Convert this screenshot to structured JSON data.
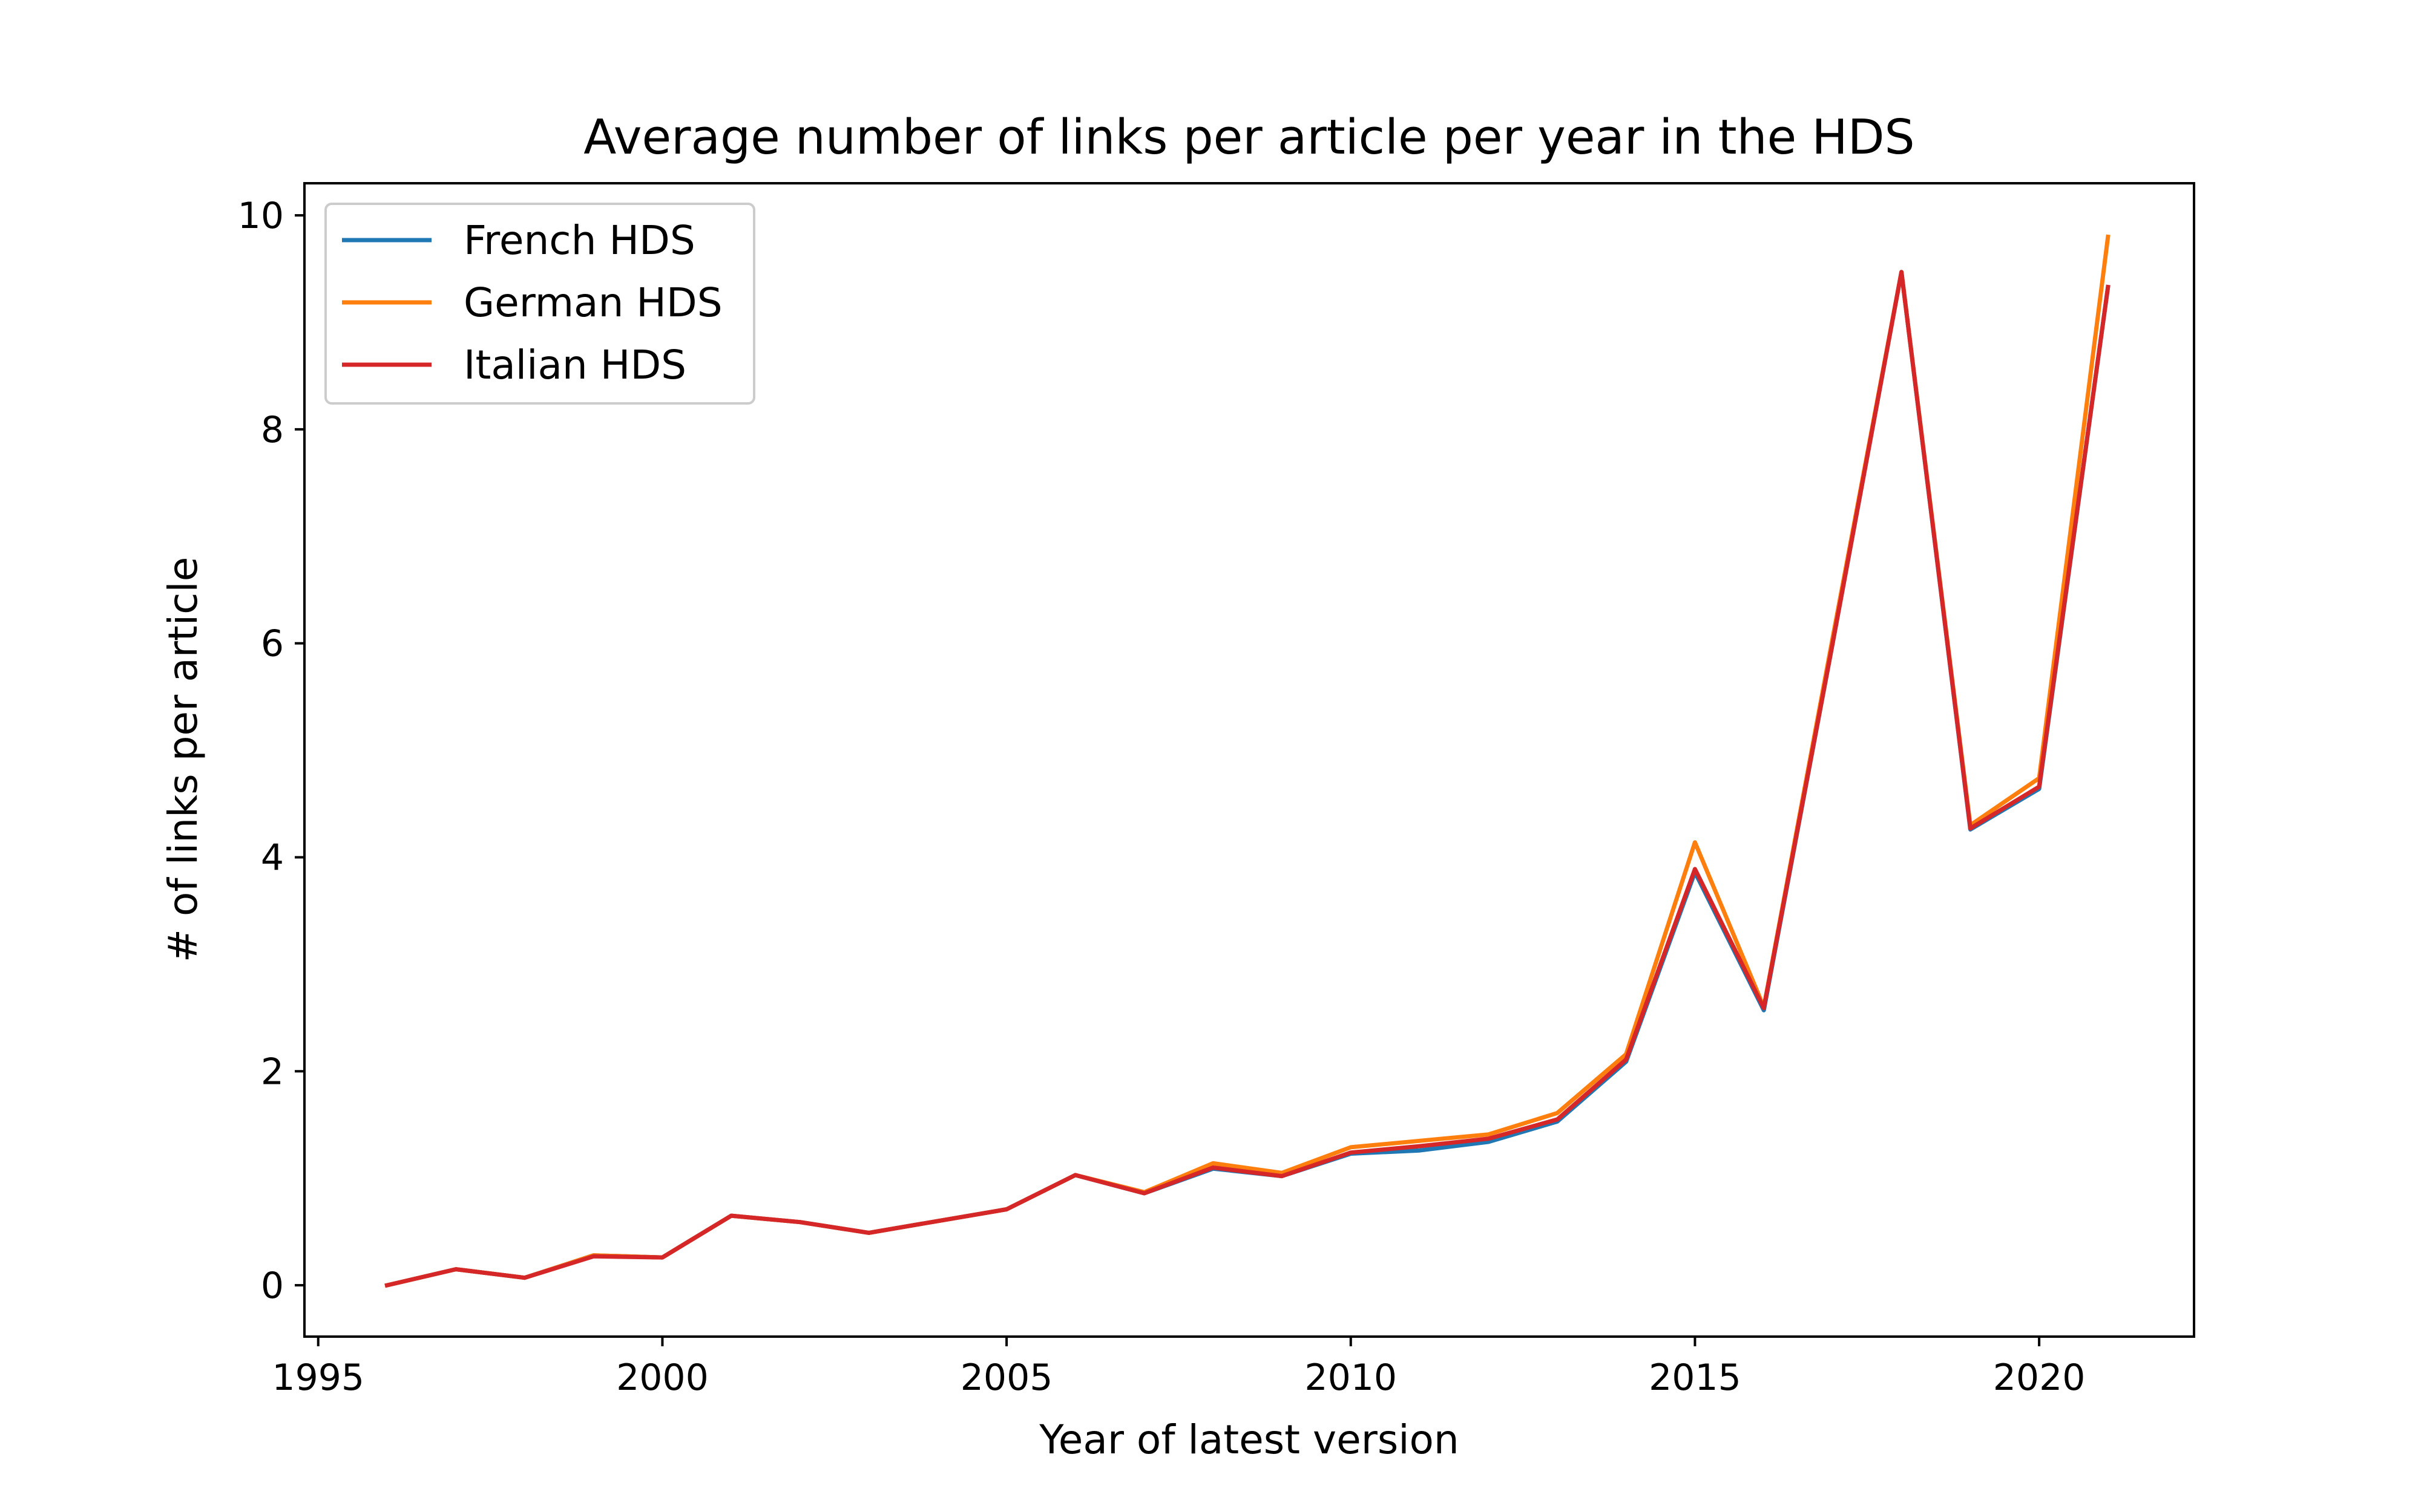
{
  "chart_data": {
    "type": "line",
    "title": "Average number of links per article per year in the HDS",
    "xlabel": "Year of latest version",
    "ylabel": "# of links per article",
    "xlim": [
      1994.8,
      2022.25
    ],
    "ylim": [
      -0.48,
      10.3
    ],
    "x_ticks": [
      1995,
      2000,
      2005,
      2010,
      2015,
      2020
    ],
    "y_ticks": [
      0,
      2,
      4,
      6,
      8,
      10
    ],
    "grid": false,
    "legend_position": "top-left",
    "x": [
      1996,
      1997,
      1998,
      1999,
      2000,
      2001,
      2002,
      2003,
      2004,
      2005,
      2006,
      2007,
      2008,
      2009,
      2010,
      2011,
      2012,
      2013,
      2014,
      2015,
      2016,
      2017,
      2018,
      2019,
      2020,
      2021
    ],
    "series": [
      {
        "name": "French HDS",
        "color": "#1f77b4",
        "values": [
          0.0,
          0.15,
          0.07,
          0.28,
          0.26,
          0.65,
          0.59,
          0.49,
          0.6,
          0.71,
          1.03,
          0.86,
          1.09,
          1.02,
          1.23,
          1.26,
          1.34,
          1.53,
          2.09,
          3.86,
          2.57,
          6.0,
          9.47,
          4.26,
          4.64,
          9.33
        ]
      },
      {
        "name": "German HDS",
        "color": "#ff7f0e",
        "values": [
          0.0,
          0.15,
          0.07,
          0.28,
          0.26,
          0.65,
          0.59,
          0.49,
          0.6,
          0.71,
          1.03,
          0.87,
          1.14,
          1.05,
          1.29,
          1.35,
          1.41,
          1.61,
          2.16,
          4.14,
          2.6,
          6.05,
          9.47,
          4.3,
          4.74,
          9.8
        ]
      },
      {
        "name": "Italian HDS",
        "color": "#d62728",
        "values": [
          0.0,
          0.15,
          0.07,
          0.27,
          0.26,
          0.65,
          0.59,
          0.49,
          0.6,
          0.71,
          1.03,
          0.86,
          1.1,
          1.02,
          1.24,
          1.3,
          1.37,
          1.55,
          2.11,
          3.89,
          2.59,
          6.0,
          9.47,
          4.27,
          4.66,
          9.33
        ]
      }
    ]
  }
}
